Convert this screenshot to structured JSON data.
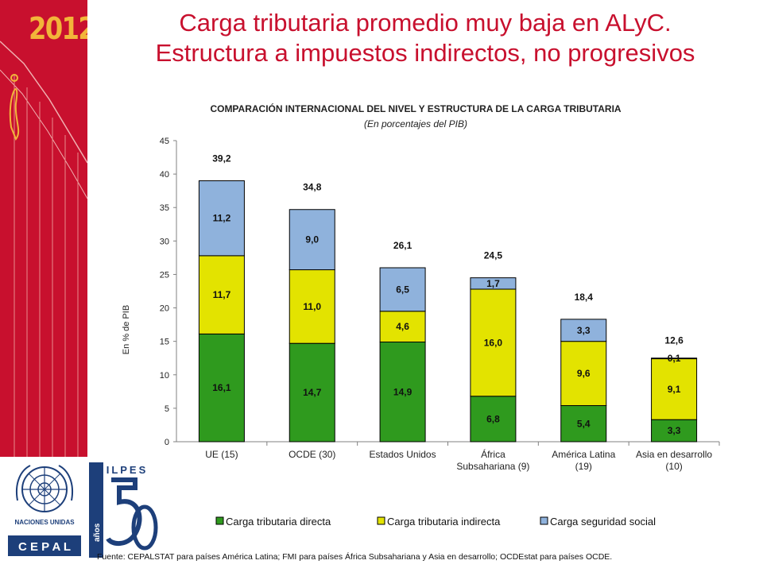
{
  "header": {
    "year_badge": "2012",
    "title_line1": "Carga tributaria promedio muy baja en ALyC.",
    "title_line2": "Estructura a impuestos indirectos, no progresivos"
  },
  "logos": {
    "un_name": "NACIONES UNIDAS",
    "cepal_name": "C E P A L",
    "ilpes_name": "ILPES",
    "ilpes_years": "años"
  },
  "footer": {
    "source": "Fuente: CEPALSTAT para países América Latina; FMI para países África Subsahariana y Asia en desarrollo; OCDEstat para países OCDE."
  },
  "colors": {
    "brand_red": "#c8102e",
    "directa": "#2f9a1e",
    "indirecta": "#e3e300",
    "seguridad": "#8fb2dc"
  },
  "chart_data": {
    "type": "bar",
    "stacked": true,
    "title": "COMPARACIÓN INTERNACIONAL DEL NIVEL Y ESTRUCTURA DE LA CARGA TRIBUTARIA",
    "subtitle": "(En porcentajes del PIB)",
    "ylabel": "En % de PIB",
    "xlabel": "",
    "ylim": [
      0,
      45
    ],
    "yticks": [
      0,
      5,
      10,
      15,
      20,
      25,
      30,
      35,
      40,
      45
    ],
    "grid": false,
    "legend_position": "bottom",
    "categories": [
      [
        "UE (15)"
      ],
      [
        "OCDE (30)"
      ],
      [
        "Estados Unidos"
      ],
      [
        "África",
        "Subsahariana (9)"
      ],
      [
        "América Latina",
        "(19)"
      ],
      [
        "Asia en desarrollo",
        "(10)"
      ]
    ],
    "series": [
      {
        "name": "Carga tributaria directa",
        "values": [
          16.1,
          14.7,
          14.9,
          6.8,
          5.4,
          3.3
        ],
        "labels": [
          "16,1",
          "14,7",
          "14,9",
          "6,8",
          "5,4",
          "3,3"
        ]
      },
      {
        "name": "Carga tributaria indirecta",
        "values": [
          11.7,
          11.0,
          4.6,
          16.0,
          9.6,
          9.1
        ],
        "labels": [
          "11,7",
          "11,0",
          "4,6",
          "16,0",
          "9,6",
          "9,1"
        ]
      },
      {
        "name": "Carga seguridad social",
        "values": [
          11.2,
          9.0,
          6.5,
          1.7,
          3.3,
          0.1
        ],
        "labels": [
          "11,2",
          "9,0",
          "6,5",
          "1,7",
          "3,3",
          "0,1"
        ]
      }
    ],
    "totals": [
      39.2,
      34.8,
      26.1,
      24.5,
      18.4,
      12.6
    ],
    "total_labels": [
      "39,2",
      "34,8",
      "26,1",
      "24,5",
      "18,4",
      "12,6"
    ]
  }
}
